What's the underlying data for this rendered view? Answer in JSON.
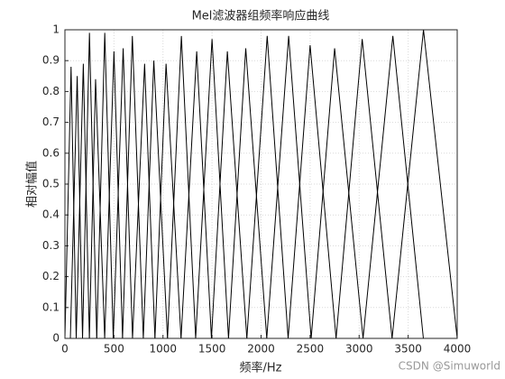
{
  "chart_data": {
    "type": "line",
    "title": "Mel滤波器组频率响应曲线",
    "x_label": "频率/Hz",
    "y_label": "相对幅值",
    "watermark": "CSDN @Simuworld",
    "xlim": [
      0,
      4000
    ],
    "xticks": [
      0,
      500,
      1000,
      1500,
      2000,
      2500,
      3000,
      3500,
      4000
    ],
    "ylim": [
      0,
      1
    ],
    "yticks": [
      0,
      0.1,
      0.2,
      0.3,
      0.4,
      0.5,
      0.6,
      0.7,
      0.8,
      0.9,
      1
    ],
    "grid": true,
    "series": [
      {
        "color": "#000000",
        "x": [
          0,
          62.5,
          115.1
        ],
        "values": [
          0,
          0.88,
          0
        ]
      },
      {
        "color": "#000000",
        "x": [
          55.4,
          125,
          179.6
        ],
        "values": [
          0,
          0.85,
          0
        ]
      },
      {
        "color": "#000000",
        "x": [
          115.1,
          187.5,
          249.3
        ],
        "values": [
          0,
          0.89,
          0
        ]
      },
      {
        "color": "#000000",
        "x": [
          179.6,
          250,
          324.4
        ],
        "values": [
          0,
          0.99,
          0
        ]
      },
      {
        "color": "#000000",
        "x": [
          249.3,
          312.5,
          405.4
        ],
        "values": [
          0,
          0.84,
          0
        ]
      },
      {
        "color": "#000000",
        "x": [
          324.4,
          406.25,
          493
        ],
        "values": [
          0,
          0.99,
          0
        ]
      },
      {
        "color": "#000000",
        "x": [
          405.4,
          500,
          587.4
        ],
        "values": [
          0,
          0.93,
          0
        ]
      },
      {
        "color": "#000000",
        "x": [
          493,
          593.75,
          689.2
        ],
        "values": [
          0,
          0.94,
          0
        ]
      },
      {
        "color": "#000000",
        "x": [
          587.4,
          687.5,
          799.2
        ],
        "values": [
          0,
          0.98,
          0
        ]
      },
      {
        "color": "#000000",
        "x": [
          689.2,
          812.5,
          917.8
        ],
        "values": [
          0,
          0.89,
          0
        ]
      },
      {
        "color": "#000000",
        "x": [
          799.2,
          906.25,
          1046
        ],
        "values": [
          0,
          0.9,
          0
        ]
      },
      {
        "color": "#000000",
        "x": [
          917.8,
          1031.25,
          1184
        ],
        "values": [
          0,
          0.89,
          0
        ]
      },
      {
        "color": "#000000",
        "x": [
          1046,
          1187.5,
          1333
        ],
        "values": [
          0,
          0.98,
          0
        ]
      },
      {
        "color": "#000000",
        "x": [
          1184,
          1343.75,
          1494
        ],
        "values": [
          0,
          0.93,
          0
        ]
      },
      {
        "color": "#000000",
        "x": [
          1333,
          1500,
          1668
        ],
        "values": [
          0,
          0.97,
          0
        ]
      },
      {
        "color": "#000000",
        "x": [
          1494,
          1656.25,
          1855
        ],
        "values": [
          0,
          0.93,
          0
        ]
      },
      {
        "color": "#000000",
        "x": [
          1668,
          1843.75,
          2058
        ],
        "values": [
          0,
          0.94,
          0
        ]
      },
      {
        "color": "#000000",
        "x": [
          1855,
          2062.5,
          2276
        ],
        "values": [
          0,
          0.98,
          0
        ]
      },
      {
        "color": "#000000",
        "x": [
          2058,
          2281.25,
          2511
        ],
        "values": [
          0,
          0.98,
          0
        ]
      },
      {
        "color": "#000000",
        "x": [
          2276,
          2500,
          2765
        ],
        "values": [
          0,
          0.95,
          0
        ]
      },
      {
        "color": "#000000",
        "x": [
          2511,
          2750,
          3040
        ],
        "values": [
          0,
          0.94,
          0
        ]
      },
      {
        "color": "#000000",
        "x": [
          2765,
          3031.25,
          3336
        ],
        "values": [
          0,
          0.97,
          0
        ]
      },
      {
        "color": "#000000",
        "x": [
          3040,
          3343.75,
          3655
        ],
        "values": [
          0,
          0.98,
          0
        ]
      },
      {
        "color": "#000000",
        "x": [
          3336,
          3656.25,
          4000
        ],
        "values": [
          0,
          1,
          0
        ]
      }
    ]
  }
}
